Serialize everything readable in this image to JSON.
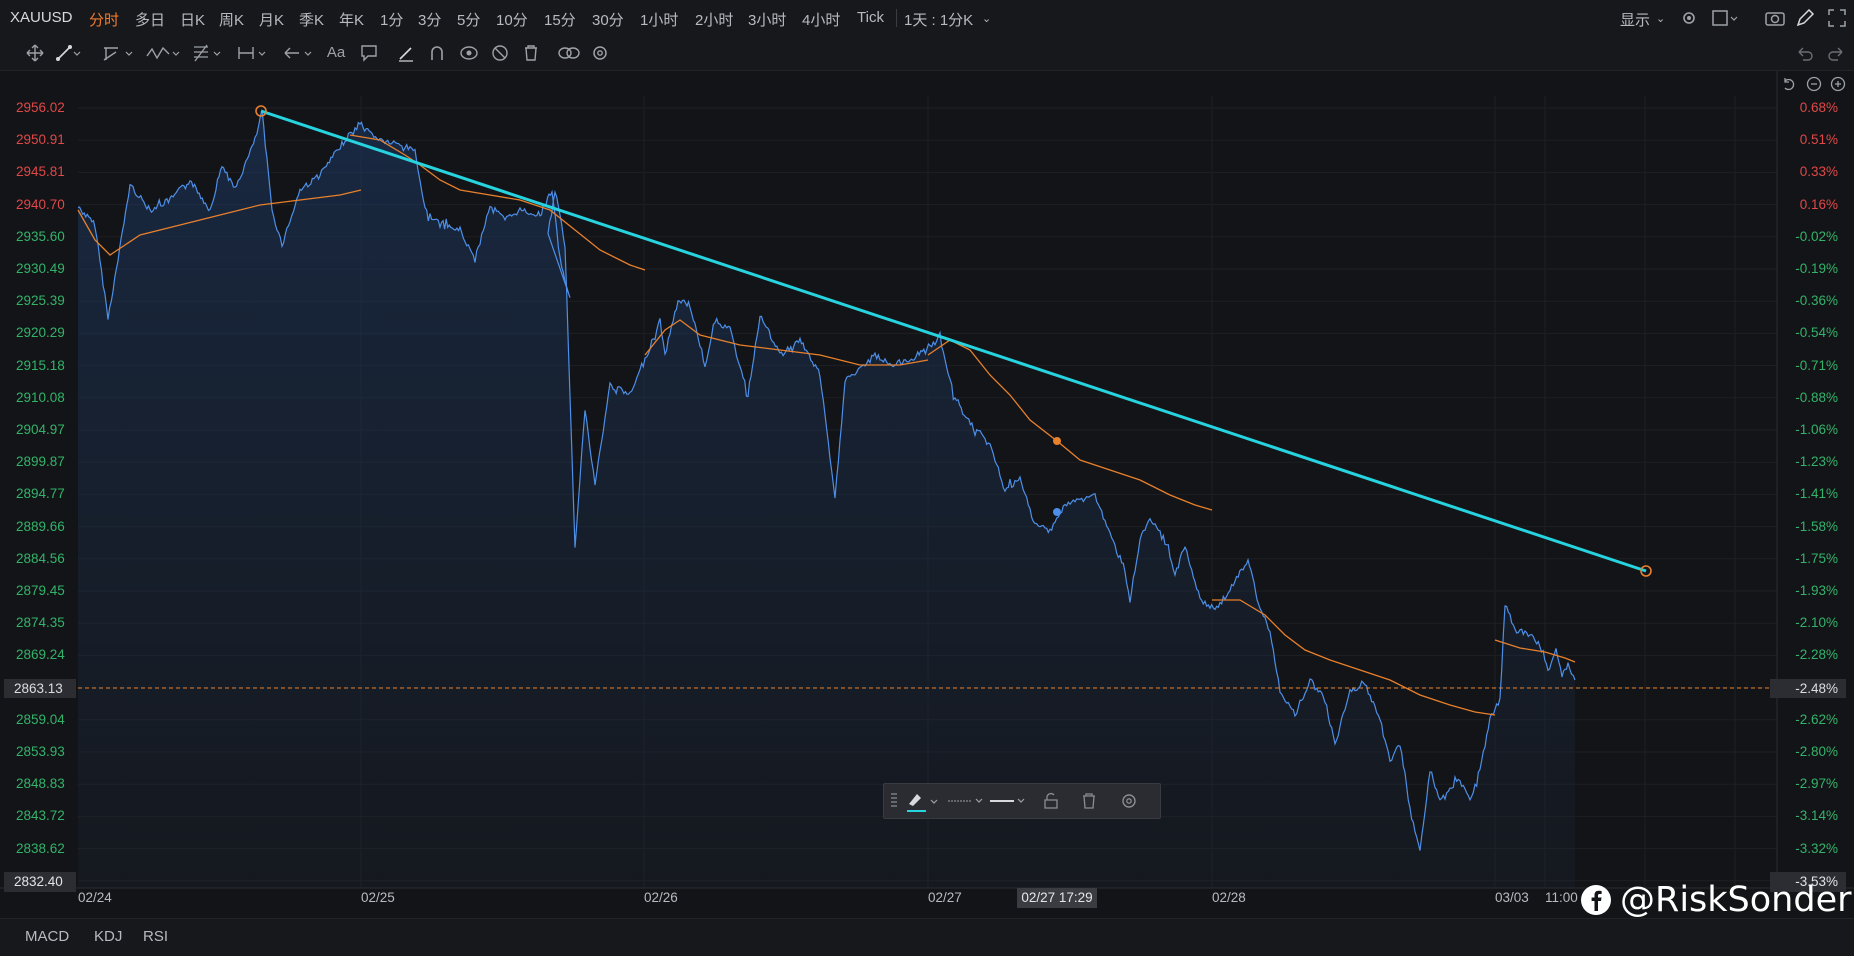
{
  "header": {
    "symbol": "XAUUSD",
    "timeframes": [
      "分时",
      "多日",
      "日K",
      "周K",
      "月K",
      "季K",
      "年K",
      "1分",
      "3分",
      "5分",
      "10分",
      "15分",
      "30分",
      "1小时",
      "2小时",
      "3小时",
      "4小时",
      "Tick",
      "1天 : 1分K"
    ],
    "active_timeframe": "分时",
    "display_label": "显示"
  },
  "icons": {
    "toolbar_left": [
      "move-icon",
      "line-tool-icon",
      "channel-tool-icon",
      "wave-tool-icon",
      "fib-tool-icon",
      "measure-tool-icon",
      "arrow-tool-icon",
      "text-tool-icon",
      "note-tool-icon",
      "pen-icon",
      "magnet-icon",
      "eye-icon",
      "hide-icon",
      "trash-icon",
      "link-icon",
      "gear-icon"
    ],
    "header_right": [
      "gear-icon",
      "layout-icon",
      "camera-icon",
      "pencil-icon",
      "expand-icon"
    ],
    "undo": "undo-icon",
    "redo": "redo-icon",
    "zoom": [
      "reset-icon",
      "zoom-out-icon",
      "zoom-in-icon"
    ]
  },
  "chart": {
    "left_axis": [
      "2956.02",
      "2950.91",
      "2945.81",
      "2940.70",
      "2935.60",
      "2930.49",
      "2925.39",
      "2920.29",
      "2915.18",
      "2910.08",
      "2904.97",
      "2899.87",
      "2894.77",
      "2889.66",
      "2884.56",
      "2879.45",
      "2874.35",
      "2869.24",
      "2863.13",
      "2859.04",
      "2853.93",
      "2848.83",
      "2843.72",
      "2838.62",
      "2832.40"
    ],
    "right_axis": [
      "0.68%",
      "0.51%",
      "0.33%",
      "0.16%",
      "-0.02%",
      "-0.19%",
      "-0.36%",
      "-0.54%",
      "-0.71%",
      "-0.88%",
      "-1.06%",
      "-1.23%",
      "-1.41%",
      "-1.58%",
      "-1.75%",
      "-1.93%",
      "-2.10%",
      "-2.28%",
      "-2.48%",
      "-2.62%",
      "-2.80%",
      "-2.97%",
      "-3.14%",
      "-3.32%",
      "-3.53%"
    ],
    "x_axis": [
      "02/24",
      "02/25",
      "02/26",
      "02/27",
      "02/28",
      "03/03",
      "11:00"
    ],
    "current_price": "2863.13",
    "current_pct": "-2.48%",
    "low_price": "2832.40",
    "low_pct": "-3.53%",
    "crosshair_time": "02/27 17:29",
    "colors": {
      "price_line": "#4d8fe8",
      "avg_line": "#e8802c",
      "trend_line": "#27d3df",
      "up": "#e04848",
      "down": "#33b36a"
    }
  },
  "indicators": [
    "MACD",
    "KDJ",
    "RSI"
  ],
  "watermark": "@RiskSonder"
}
